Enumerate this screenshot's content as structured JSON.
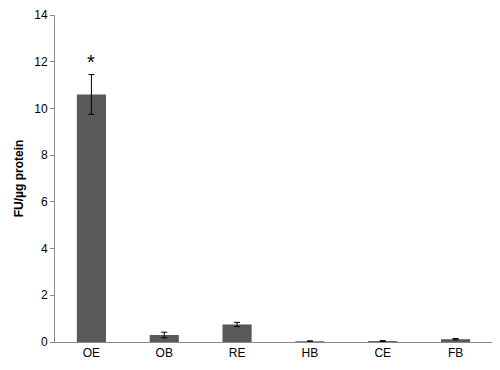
{
  "chart_data": {
    "type": "bar",
    "y_label": "FU/µg protein",
    "categories": [
      "OE",
      "OB",
      "RE",
      "HB",
      "CE",
      "FB"
    ],
    "values": [
      10.6,
      0.3,
      0.75,
      0.03,
      0.04,
      0.12
    ],
    "errors": [
      0.85,
      0.12,
      0.09,
      0.02,
      0.02,
      0.03
    ],
    "color": "#595959",
    "ylim": [
      0,
      14
    ],
    "yticks": [
      0,
      2,
      4,
      6,
      8,
      10,
      12,
      14
    ],
    "grid": false,
    "annotations": [
      {
        "text": "*",
        "category": "OE"
      }
    ]
  }
}
